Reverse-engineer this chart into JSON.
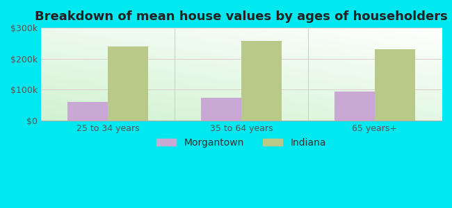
{
  "title": "Breakdown of mean house values by ages of householders",
  "categories": [
    "25 to 34 years",
    "35 to 64 years",
    "65 years+"
  ],
  "morgantown_values": [
    60000,
    75000,
    95000
  ],
  "indiana_values": [
    240000,
    257000,
    230000
  ],
  "morgantown_color": "#c9a8d4",
  "indiana_color": "#b8c98a",
  "background_outer": "#00e8f0",
  "ylim": [
    0,
    300000
  ],
  "yticks": [
    0,
    100000,
    200000,
    300000
  ],
  "ytick_labels": [
    "$0",
    "$100k",
    "$200k",
    "$300k"
  ],
  "bar_width": 0.3,
  "legend_labels": [
    "Morgantown",
    "Indiana"
  ],
  "title_fontsize": 13,
  "axis_tick_fontsize": 9,
  "legend_fontsize": 10
}
